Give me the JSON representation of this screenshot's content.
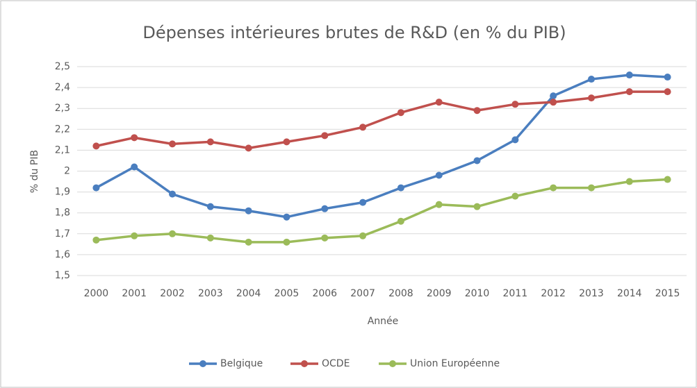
{
  "chart_data": {
    "type": "line",
    "title": "Dépenses intérieures brutes de R&D (en % du PIB)",
    "xlabel": "Année",
    "ylabel": "% du PIB",
    "categories": [
      "2000",
      "2001",
      "2002",
      "2003",
      "2004",
      "2005",
      "2006",
      "2007",
      "2008",
      "2009",
      "2010",
      "2011",
      "2012",
      "2013",
      "2014",
      "2015"
    ],
    "series": [
      {
        "name": "Belgique",
        "color": "#4a7ebf",
        "values": [
          1.92,
          2.02,
          1.89,
          1.83,
          1.81,
          1.78,
          1.82,
          1.85,
          1.92,
          1.98,
          2.05,
          2.15,
          2.36,
          2.44,
          2.46,
          2.45
        ]
      },
      {
        "name": "OCDE",
        "color": "#c0504d",
        "values": [
          2.12,
          2.16,
          2.13,
          2.14,
          2.11,
          2.14,
          2.17,
          2.21,
          2.28,
          2.33,
          2.29,
          2.32,
          2.33,
          2.35,
          2.38,
          2.38
        ]
      },
      {
        "name": "Union Européenne",
        "color": "#9bbb59",
        "values": [
          1.67,
          1.69,
          1.7,
          1.68,
          1.66,
          1.66,
          1.68,
          1.69,
          1.76,
          1.84,
          1.83,
          1.88,
          1.92,
          1.92,
          1.95,
          1.96
        ]
      }
    ],
    "ylim": [
      1.5,
      2.5
    ],
    "yticks": [
      {
        "value": 1.5,
        "label": "1,5"
      },
      {
        "value": 1.6,
        "label": "1,6"
      },
      {
        "value": 1.7,
        "label": "1,7"
      },
      {
        "value": 1.8,
        "label": "1,8"
      },
      {
        "value": 1.9,
        "label": "1,9"
      },
      2,
      {
        "value": 2.1,
        "label": "2,1"
      },
      {
        "value": 2.2,
        "label": "2,2"
      },
      {
        "value": 2.3,
        "label": "2,3"
      },
      {
        "value": 2.4,
        "label": "2,4"
      },
      {
        "value": 2.5,
        "label": "2,5"
      }
    ],
    "grid": true,
    "legend": "bottom"
  }
}
